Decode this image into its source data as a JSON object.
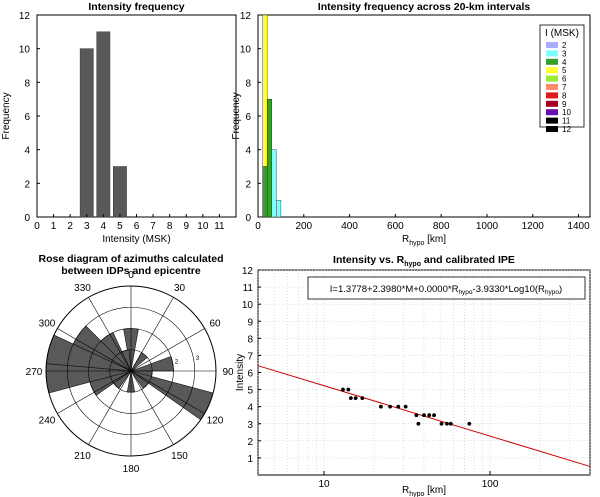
{
  "chart_data": [
    {
      "id": "p1",
      "type": "bar",
      "title": "Intensity frequency",
      "xlabel": "Intensity (MSK)",
      "ylabel": "Frequency",
      "xlim": [
        0,
        12
      ],
      "ylim": [
        0,
        12
      ],
      "xticks": [
        0,
        1,
        2,
        3,
        4,
        5,
        6,
        7,
        8,
        9,
        10,
        11
      ],
      "yticks": [
        0,
        2,
        4,
        6,
        8,
        10,
        12
      ],
      "categories": [
        3,
        4,
        5
      ],
      "values": [
        10,
        11,
        3
      ],
      "bar_color": "#595959"
    },
    {
      "id": "p2",
      "type": "bar",
      "title": "Intensity frequency across 20-km intervals",
      "xlabel": "R_hypo [km]",
      "ylabel": "Frequency",
      "xlim": [
        0,
        1450
      ],
      "ylim": [
        0,
        12
      ],
      "xticks": [
        0,
        200,
        400,
        600,
        800,
        1000,
        1200,
        1400
      ],
      "yticks": [
        0,
        2,
        4,
        6,
        8,
        10,
        12
      ],
      "legend_title": "I (MSK)",
      "legend_position": "top-right",
      "legend": [
        {
          "label": "2",
          "color": "#aaaaff"
        },
        {
          "label": "3",
          "color": "#80ffff"
        },
        {
          "label": "4",
          "color": "#33a02c"
        },
        {
          "label": "5",
          "color": "#ffff33"
        },
        {
          "label": "6",
          "color": "#99ee33"
        },
        {
          "label": "7",
          "color": "#ff8c69"
        },
        {
          "label": "8",
          "color": "#e31a1c"
        },
        {
          "label": "9",
          "color": "#a50026"
        },
        {
          "label": "10",
          "color": "#6a0dad"
        },
        {
          "label": "11",
          "color": "#000000"
        },
        {
          "label": "12",
          "color": "#000000"
        }
      ],
      "bins": [
        {
          "x0": 20,
          "x1": 40,
          "segments": [
            {
              "i": "4",
              "v": 3
            },
            {
              "i": "5",
              "v": 9
            }
          ]
        },
        {
          "x0": 40,
          "x1": 60,
          "segments": [
            {
              "i": "4",
              "v": 7
            }
          ]
        },
        {
          "x0": 60,
          "x1": 80,
          "segments": [
            {
              "i": "3",
              "v": 4
            }
          ]
        },
        {
          "x0": 80,
          "x1": 100,
          "segments": [
            {
              "i": "3",
              "v": 1
            }
          ]
        }
      ]
    },
    {
      "id": "p3",
      "type": "rose",
      "title_lines": [
        "Rose diagram of azimuths calculated",
        "between  IDPs and epicentre"
      ],
      "angle_labels": [
        {
          "deg": 0,
          "text": "0"
        },
        {
          "deg": 30,
          "text": "30"
        },
        {
          "deg": 60,
          "text": "60"
        },
        {
          "deg": 90,
          "text": "90"
        },
        {
          "deg": 120,
          "text": "120"
        },
        {
          "deg": 150,
          "text": "150"
        },
        {
          "deg": 180,
          "text": "180"
        },
        {
          "deg": 210,
          "text": "210"
        },
        {
          "deg": 240,
          "text": "240"
        },
        {
          "deg": 270,
          "text": "270"
        },
        {
          "deg": 300,
          "text": "300"
        },
        {
          "deg": 330,
          "text": "330"
        }
      ],
      "rmax": 4,
      "ring_labels": [
        {
          "r": 2,
          "text": "2"
        },
        {
          "r": 3,
          "text": "3"
        }
      ],
      "bin_width_deg": 20,
      "petals": [
        {
          "center": 0,
          "count": 2
        },
        {
          "center": 40,
          "count": 1
        },
        {
          "center": 80,
          "count": 2
        },
        {
          "center": 100,
          "count": 1
        },
        {
          "center": 115,
          "count": 4
        },
        {
          "center": 135,
          "count": 1
        },
        {
          "center": 180,
          "count": 1
        },
        {
          "center": 225,
          "count": 1
        },
        {
          "center": 245,
          "count": 2
        },
        {
          "center": 265,
          "count": 4
        },
        {
          "center": 285,
          "count": 4
        },
        {
          "center": 305,
          "count": 3
        },
        {
          "center": 325,
          "count": 2
        },
        {
          "center": 345,
          "count": 1
        }
      ],
      "fill": "#595959"
    },
    {
      "id": "p4",
      "type": "scatter",
      "title": "Intensity vs. R_hypo and calibrated IPE",
      "xlabel": "R_hypo [km]",
      "ylabel": "Intensity",
      "xscale": "log",
      "xlim": [
        4,
        400
      ],
      "ylim": [
        0,
        12
      ],
      "xticks": [
        10,
        100
      ],
      "yticks": [
        1,
        2,
        3,
        4,
        5,
        6,
        7,
        8,
        9,
        10,
        11,
        12
      ],
      "equation": "I=1.3778+2.3980*M+0.0000*R_hypo-3.9330*Log10(R_hypo)",
      "line_color": "#cc0000",
      "line_points": [
        {
          "x": 4,
          "y": 6.4
        },
        {
          "x": 400,
          "y": 0.5
        }
      ],
      "points": [
        {
          "x": 13,
          "y": 5
        },
        {
          "x": 14,
          "y": 5
        },
        {
          "x": 14.5,
          "y": 4.5
        },
        {
          "x": 15.5,
          "y": 4.5
        },
        {
          "x": 17,
          "y": 4.5
        },
        {
          "x": 22,
          "y": 4
        },
        {
          "x": 25,
          "y": 4
        },
        {
          "x": 28,
          "y": 4
        },
        {
          "x": 31,
          "y": 4
        },
        {
          "x": 36,
          "y": 3.5
        },
        {
          "x": 37,
          "y": 3
        },
        {
          "x": 40,
          "y": 3.5
        },
        {
          "x": 43,
          "y": 3.5
        },
        {
          "x": 46,
          "y": 3.5
        },
        {
          "x": 51,
          "y": 3
        },
        {
          "x": 55,
          "y": 3
        },
        {
          "x": 58,
          "y": 3
        },
        {
          "x": 75,
          "y": 3
        }
      ]
    }
  ]
}
